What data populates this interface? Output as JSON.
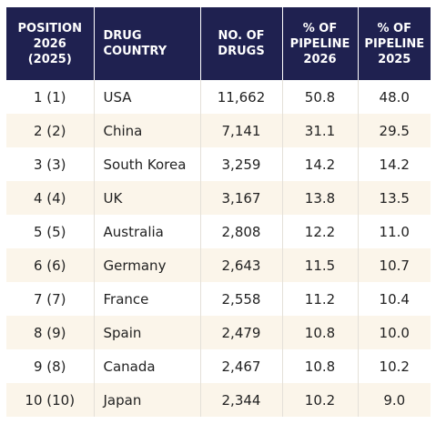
{
  "table": {
    "header": [
      [
        "POSITION",
        "2026 (2025)"
      ],
      [
        "DRUG",
        "COUNTRY"
      ],
      [
        "NO. OF",
        "DRUGS"
      ],
      [
        "% OF",
        "PIPELINE",
        "2026"
      ],
      [
        "% OF",
        "PIPELINE",
        "2025"
      ]
    ],
    "rows": [
      [
        "1 (1)",
        "USA",
        "11,662",
        "50.8",
        "48.0"
      ],
      [
        "2 (2)",
        "China",
        "7,141",
        "31.1",
        "29.5"
      ],
      [
        "3 (3)",
        "South Korea",
        "3,259",
        "14.2",
        "14.2"
      ],
      [
        "4 (4)",
        "UK",
        "3,167",
        "13.8",
        "13.5"
      ],
      [
        "5 (5)",
        "Australia",
        "2,808",
        "12.2",
        "11.0"
      ],
      [
        "6 (6)",
        "Germany",
        "2,643",
        "11.5",
        "10.7"
      ],
      [
        "7 (7)",
        "France",
        "2,558",
        "11.2",
        "10.4"
      ],
      [
        "8 (9)",
        "Spain",
        "2,479",
        "10.8",
        "10.0"
      ],
      [
        "9 (8)",
        "Canada",
        "2,467",
        "10.8",
        "10.2"
      ],
      [
        "10 (10)",
        "Japan",
        "2,344",
        "10.2",
        "9.0"
      ]
    ]
  }
}
